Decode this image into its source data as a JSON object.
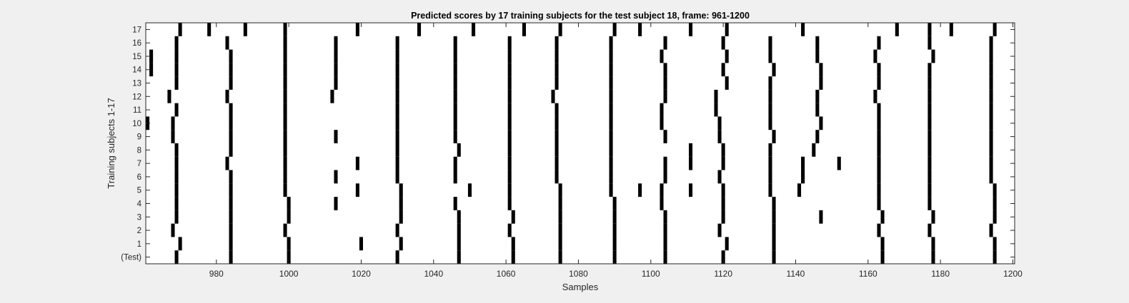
{
  "chart_data": {
    "type": "heatmap",
    "title": "Predicted scores by 17 training subjects for the test subject 18, frame: 961-1200",
    "xlabel": "Samples",
    "ylabel": "Training subjects 1-17",
    "xlim": [
      961,
      1200
    ],
    "xticks": [
      980,
      1000,
      1020,
      1040,
      1060,
      1080,
      1100,
      1120,
      1140,
      1160,
      1180,
      1200
    ],
    "ylim": [
      0,
      17
    ],
    "yticklabels": [
      "(Test)",
      "1",
      "2",
      "3",
      "4",
      "5",
      "6",
      "7",
      "8",
      "9",
      "10",
      "11",
      "12",
      "13",
      "14",
      "15",
      "16",
      "17"
    ],
    "background_color": "#ffffff",
    "mark_color": "#000000",
    "grid": false,
    "rows": [
      {
        "label": "(Test)",
        "events": [
          969,
          984,
          1000,
          1030,
          1047,
          1062,
          1075,
          1090,
          1104,
          1120,
          1134,
          1164,
          1178,
          1195
        ]
      },
      {
        "label": "1",
        "events": [
          970,
          984,
          1000,
          1020,
          1031,
          1047,
          1062,
          1075,
          1090,
          1104,
          1121,
          1134,
          1164,
          1178,
          1195
        ]
      },
      {
        "label": "2",
        "events": [
          968,
          984,
          999,
          1030,
          1047,
          1061,
          1075,
          1090,
          1104,
          1119,
          1134,
          1163,
          1177,
          1194
        ]
      },
      {
        "label": "3",
        "events": [
          969,
          984,
          1000,
          1031,
          1047,
          1062,
          1075,
          1090,
          1104,
          1120,
          1134,
          1147,
          1164,
          1178,
          1195
        ]
      },
      {
        "label": "4",
        "events": [
          969,
          984,
          1000,
          1013,
          1031,
          1046,
          1061,
          1075,
          1090,
          1103,
          1120,
          1134,
          1163,
          1177,
          1195
        ]
      },
      {
        "label": "5",
        "events": [
          969,
          984,
          999,
          1019,
          1031,
          1050,
          1061,
          1075,
          1089,
          1097,
          1103,
          1111,
          1120,
          1133,
          1141,
          1163,
          1177,
          1195
        ]
      },
      {
        "label": "6",
        "events": [
          969,
          984,
          999,
          1013,
          1030,
          1046,
          1061,
          1074,
          1089,
          1104,
          1119,
          1133,
          1142,
          1163,
          1177,
          1194
        ]
      },
      {
        "label": "7",
        "events": [
          969,
          983,
          999,
          1019,
          1030,
          1046,
          1061,
          1074,
          1089,
          1104,
          1111,
          1120,
          1133,
          1142,
          1152,
          1163,
          1177,
          1194
        ]
      },
      {
        "label": "8",
        "events": [
          969,
          984,
          999,
          1030,
          1047,
          1061,
          1074,
          1089,
          1111,
          1120,
          1133,
          1145,
          1163,
          1177,
          1194
        ]
      },
      {
        "label": "9",
        "events": [
          968,
          984,
          999,
          1013,
          1030,
          1046,
          1061,
          1074,
          1089,
          1104,
          1119,
          1134,
          1146,
          1163,
          1177,
          1194
        ]
      },
      {
        "label": "10",
        "events": [
          961,
          968,
          984,
          999,
          1030,
          1046,
          1061,
          1074,
          1089,
          1103,
          1119,
          1133,
          1147,
          1163,
          1177,
          1194
        ]
      },
      {
        "label": "11",
        "events": [
          969,
          984,
          999,
          1030,
          1046,
          1061,
          1074,
          1089,
          1103,
          1118,
          1133,
          1146,
          1163,
          1177,
          1194
        ]
      },
      {
        "label": "12",
        "events": [
          967,
          983,
          999,
          1012,
          1030,
          1046,
          1061,
          1073,
          1089,
          1104,
          1118,
          1133,
          1146,
          1162,
          1177,
          1194
        ]
      },
      {
        "label": "13",
        "events": [
          969,
          984,
          999,
          1013,
          1030,
          1046,
          1061,
          1074,
          1089,
          1104,
          1121,
          1133,
          1147,
          1163,
          1177,
          1194
        ]
      },
      {
        "label": "14",
        "events": [
          962,
          969,
          984,
          999,
          1013,
          1030,
          1046,
          1061,
          1074,
          1089,
          1104,
          1120,
          1134,
          1147,
          1163,
          1177,
          1194
        ]
      },
      {
        "label": "15",
        "events": [
          962,
          969,
          984,
          999,
          1013,
          1030,
          1046,
          1061,
          1074,
          1089,
          1103,
          1121,
          1133,
          1146,
          1162,
          1178,
          1194
        ]
      },
      {
        "label": "16",
        "events": [
          969,
          983,
          999,
          1013,
          1030,
          1046,
          1061,
          1074,
          1089,
          1104,
          1120,
          1133,
          1146,
          1163,
          1177,
          1194
        ]
      },
      {
        "label": "17",
        "events": [
          970,
          978,
          988,
          999,
          1019,
          1036,
          1051,
          1065,
          1075,
          1090,
          1097,
          1111,
          1121,
          1142,
          1168,
          1177,
          1183,
          1195
        ]
      }
    ]
  }
}
